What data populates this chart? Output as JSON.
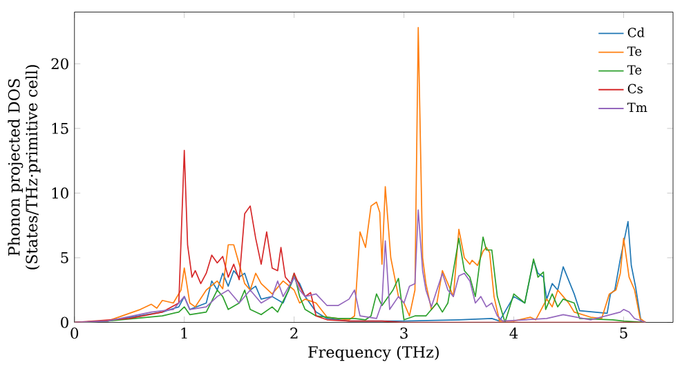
{
  "chart_data": {
    "type": "line",
    "xlabel": "Frequency (THz)",
    "ylabel": "Phonon projected DOS\n(States/THz·primitive cell)",
    "xlim": [
      0,
      5.45
    ],
    "ylim": [
      0,
      24
    ],
    "xticks": [
      0,
      1,
      2,
      3,
      4,
      5
    ],
    "yticks": [
      0,
      5,
      10,
      15,
      20
    ],
    "legend": "top right",
    "grid": false,
    "marker": "none",
    "line_style": "solid",
    "series": [
      {
        "name": "Cd",
        "color": "#1f77b4",
        "x": [
          0,
          0.3,
          0.8,
          0.95,
          1.0,
          1.05,
          1.2,
          1.25,
          1.3,
          1.35,
          1.4,
          1.45,
          1.5,
          1.55,
          1.6,
          1.65,
          1.7,
          1.8,
          1.9,
          2.0,
          2.05,
          2.1,
          2.2,
          2.3,
          2.5,
          3.0,
          3.5,
          3.8,
          3.87,
          4.0,
          4.1,
          4.18,
          4.22,
          4.27,
          4.3,
          4.35,
          4.4,
          4.45,
          4.55,
          4.6,
          4.85,
          4.88,
          4.92,
          4.97,
          5.04,
          5.07,
          5.11,
          5.16
        ],
        "values": [
          0,
          0.1,
          0.8,
          1.2,
          2.0,
          1.0,
          1.5,
          3.2,
          2.5,
          3.8,
          2.8,
          4.0,
          3.5,
          3.8,
          2.5,
          2.8,
          1.8,
          2.0,
          1.5,
          3.5,
          3.0,
          2.0,
          0.8,
          0.3,
          0.1,
          0.1,
          0.2,
          0.3,
          0.1,
          2.0,
          1.5,
          4.8,
          3.8,
          3.5,
          1.8,
          3.0,
          2.5,
          4.3,
          2.2,
          0.9,
          0.7,
          2.2,
          2.5,
          4.9,
          7.8,
          4.4,
          2.7,
          0
        ]
      },
      {
        "name": "Te",
        "color": "#ff7f0e",
        "x": [
          0,
          0.3,
          0.6,
          0.7,
          0.75,
          0.8,
          0.9,
          0.97,
          1.0,
          1.05,
          1.1,
          1.2,
          1.3,
          1.35,
          1.4,
          1.45,
          1.5,
          1.55,
          1.6,
          1.65,
          1.7,
          1.8,
          1.9,
          2.0,
          2.05,
          2.1,
          2.2,
          2.3,
          2.5,
          2.55,
          2.6,
          2.65,
          2.7,
          2.75,
          2.78,
          2.8,
          2.83,
          2.88,
          2.95,
          3.0,
          3.05,
          3.1,
          3.13,
          3.17,
          3.2,
          3.25,
          3.3,
          3.35,
          3.4,
          3.45,
          3.5,
          3.55,
          3.6,
          3.62,
          3.67,
          3.72,
          3.75,
          3.78,
          3.82,
          3.87,
          4.0,
          4.15,
          4.2,
          4.3,
          4.35,
          4.4,
          4.45,
          4.5,
          4.55,
          4.7,
          4.8,
          4.87,
          4.93,
          4.97,
          5.0,
          5.05,
          5.1,
          5.15,
          5.2
        ],
        "values": [
          0,
          0.1,
          1.0,
          1.4,
          1.1,
          1.7,
          1.5,
          2.5,
          4.2,
          1.5,
          1.2,
          2.5,
          3.2,
          2.6,
          6,
          6,
          4.5,
          3,
          2.5,
          3.8,
          3.0,
          2.2,
          3.2,
          2.5,
          1.5,
          1.8,
          1.5,
          0.4,
          0.2,
          0.5,
          7,
          5.8,
          9,
          9.3,
          8.5,
          4.5,
          10.5,
          5,
          2,
          1.5,
          0.5,
          2.5,
          22.8,
          5,
          3,
          1,
          1.5,
          4,
          3,
          2,
          7.2,
          5,
          4.5,
          4.8,
          4.4,
          5.5,
          5.8,
          5.4,
          2,
          0.1,
          0.1,
          0.4,
          0.2,
          1.8,
          1.2,
          2.5,
          2.0,
          1.5,
          0.8,
          0.4,
          0.3,
          2.2,
          2.5,
          3.8,
          6.5,
          3.5,
          2.5,
          0.3,
          0
        ]
      },
      {
        "name": "Te",
        "color": "#2ca02c",
        "x": [
          0,
          0.3,
          0.8,
          0.95,
          1.0,
          1.05,
          1.2,
          1.3,
          1.35,
          1.4,
          1.5,
          1.55,
          1.6,
          1.7,
          1.8,
          1.85,
          1.95,
          2.0,
          2.05,
          2.1,
          2.2,
          2.4,
          2.55,
          2.65,
          2.7,
          2.75,
          2.8,
          2.9,
          2.95,
          3.0,
          3.1,
          3.2,
          3.3,
          3.35,
          3.4,
          3.5,
          3.55,
          3.6,
          3.65,
          3.72,
          3.75,
          3.8,
          3.85,
          3.92,
          4.0,
          4.1,
          4.18,
          4.22,
          4.27,
          4.29,
          4.35,
          4.4,
          4.45,
          4.55,
          4.6,
          4.9,
          5.0,
          5.2
        ],
        "values": [
          0,
          0.1,
          0.5,
          0.8,
          1.2,
          0.6,
          0.8,
          2.5,
          2.0,
          1.0,
          1.5,
          2.5,
          1.0,
          0.6,
          1.2,
          0.8,
          2.5,
          3.8,
          2.0,
          1.0,
          0.5,
          0.3,
          0.3,
          0.2,
          0.5,
          2.2,
          1.3,
          2.5,
          3.4,
          0.2,
          0.5,
          0.5,
          1.5,
          0.8,
          1.5,
          6.5,
          4.0,
          3.5,
          2.0,
          6.6,
          5.6,
          5.6,
          2.0,
          0,
          2.2,
          1.5,
          4.9,
          3.5,
          3.9,
          1.0,
          2.2,
          1.2,
          1.8,
          1.5,
          0.3,
          0.2,
          0.1,
          0
        ]
      },
      {
        "name": "Cs",
        "color": "#d62728",
        "x": [
          0,
          0.5,
          0.8,
          0.95,
          1.0,
          1.03,
          1.07,
          1.1,
          1.15,
          1.2,
          1.25,
          1.3,
          1.35,
          1.4,
          1.45,
          1.5,
          1.55,
          1.6,
          1.65,
          1.7,
          1.75,
          1.8,
          1.85,
          1.88,
          1.92,
          1.97,
          2.0,
          2.05,
          2.1,
          2.15,
          2.2,
          2.3,
          2.5,
          2.8,
          3.0,
          5.2
        ],
        "values": [
          0,
          0.3,
          0.8,
          1.5,
          13.3,
          6,
          3.5,
          4,
          3,
          3.8,
          5.2,
          4.6,
          5.1,
          3.5,
          4.5,
          3.3,
          8.4,
          9,
          6.5,
          4.5,
          7,
          4.2,
          4.0,
          5.8,
          3.5,
          3,
          3.8,
          2.8,
          2.0,
          2.3,
          0.5,
          0.2,
          0.1,
          0.1,
          0,
          0
        ]
      },
      {
        "name": "Tm",
        "color": "#9467bd",
        "x": [
          0,
          0.3,
          0.7,
          0.9,
          1.0,
          1.05,
          1.2,
          1.3,
          1.4,
          1.5,
          1.6,
          1.7,
          1.8,
          1.85,
          1.9,
          2.0,
          2.05,
          2.1,
          2.2,
          2.3,
          2.4,
          2.5,
          2.55,
          2.6,
          2.75,
          2.8,
          2.83,
          2.87,
          2.95,
          3.0,
          3.05,
          3.1,
          3.13,
          3.17,
          3.2,
          3.25,
          3.35,
          3.4,
          3.45,
          3.5,
          3.55,
          3.6,
          3.65,
          3.7,
          3.75,
          3.8,
          3.85,
          3.9,
          4.3,
          4.45,
          4.7,
          4.97,
          5.0,
          5.05,
          5.1,
          5.2
        ],
        "values": [
          0,
          0.1,
          0.8,
          1.0,
          2.0,
          1.0,
          1.2,
          2.0,
          2.5,
          1.5,
          2.5,
          1.5,
          2.0,
          3.2,
          2.0,
          3.5,
          2.5,
          2.0,
          2.2,
          1.3,
          1.3,
          1.8,
          2.5,
          0.5,
          0.3,
          1.5,
          6.3,
          1.0,
          2.0,
          1.5,
          2.8,
          3.0,
          8.7,
          4.0,
          2.5,
          1.2,
          3.8,
          2.5,
          2.0,
          3.6,
          3.8,
          3.2,
          1.5,
          2.0,
          1.2,
          1.5,
          0.5,
          0.1,
          0.3,
          0.6,
          0.2,
          0.8,
          1.0,
          0.8,
          0.3,
          0
        ]
      }
    ]
  }
}
